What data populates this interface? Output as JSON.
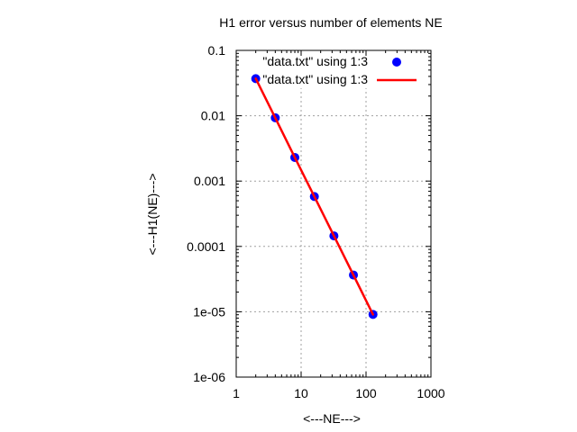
{
  "chart_data": {
    "type": "scatter",
    "title": "H1 error versus number of elements NE",
    "xlabel": "<---NE--->",
    "ylabel": "<---H1(NE)--->",
    "xscale": "log",
    "yscale": "log",
    "xlim": [
      1,
      1000
    ],
    "ylim": [
      1e-06,
      0.1
    ],
    "grid": true,
    "legend_position": "top-right",
    "x_ticks": [
      {
        "value": 1,
        "label": "1"
      },
      {
        "value": 10,
        "label": "10"
      },
      {
        "value": 100,
        "label": "100"
      },
      {
        "value": 1000,
        "label": "1000"
      }
    ],
    "y_ticks": [
      {
        "value": 0.1,
        "label": "0.1"
      },
      {
        "value": 0.01,
        "label": "0.01"
      },
      {
        "value": 0.001,
        "label": "0.001"
      },
      {
        "value": 0.0001,
        "label": "0.0001"
      },
      {
        "value": 1e-05,
        "label": "1e-05"
      },
      {
        "value": 1e-06,
        "label": "1e-06"
      }
    ],
    "series": [
      {
        "name": "\"data.txt\" using 1:3",
        "style": "points",
        "color": "#0000ff",
        "x": [
          2,
          4,
          8,
          16,
          32,
          64,
          128
        ],
        "y": [
          0.037,
          0.0093,
          0.0023,
          0.00058,
          0.000145,
          3.65e-05,
          9.1e-06
        ]
      },
      {
        "name": "\"data.txt\" using 1:3",
        "style": "line",
        "color": "#ff0000",
        "x": [
          2,
          4,
          8,
          16,
          32,
          64,
          128
        ],
        "y": [
          0.037,
          0.0093,
          0.0023,
          0.00058,
          0.000145,
          3.65e-05,
          9.1e-06
        ]
      }
    ]
  }
}
